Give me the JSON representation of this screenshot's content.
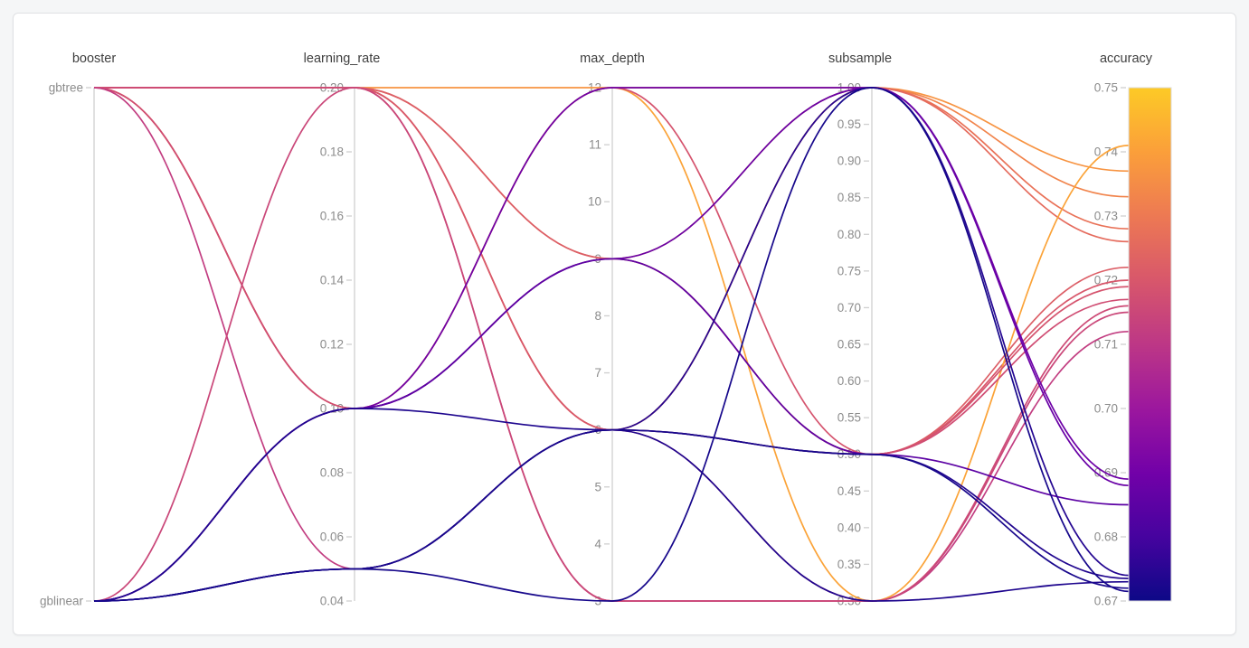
{
  "page": {
    "background_color": "#f5f6f7",
    "card_background": "#ffffff",
    "card_border_color": "#e0e1e4"
  },
  "style": {
    "axis_line_color": "#d8d8d8",
    "tick_mark_color": "#cfcfcf",
    "tick_label_color": "#8c8c8c",
    "axis_title_color": "#3f3f3f",
    "line_width": 1.7
  },
  "chart_data": {
    "type": "parallel-coordinates",
    "title": "",
    "legend": "none",
    "grid": "off",
    "axes": [
      {
        "name": "booster",
        "type": "categorical",
        "categories": [
          "gbtree",
          "gblinear"
        ],
        "tick_labels": [
          "gbtree",
          "gblinear"
        ]
      },
      {
        "name": "learning_rate",
        "type": "numeric",
        "range": [
          0.04,
          0.2
        ],
        "tick_labels": [
          "0.20",
          "0.18",
          "0.16",
          "0.14",
          "0.12",
          "0.10",
          "0.08",
          "0.06",
          "0.04"
        ]
      },
      {
        "name": "max_depth",
        "type": "numeric",
        "range": [
          3,
          12
        ],
        "tick_labels": [
          "12",
          "11",
          "10",
          "9",
          "8",
          "7",
          "6",
          "5",
          "4",
          "3"
        ]
      },
      {
        "name": "subsample",
        "type": "numeric",
        "range": [
          0.3,
          1.0
        ],
        "tick_labels": [
          "1.00",
          "0.95",
          "0.90",
          "0.85",
          "0.80",
          "0.75",
          "0.70",
          "0.65",
          "0.60",
          "0.55",
          "0.50",
          "0.45",
          "0.40",
          "0.35",
          "0.30"
        ]
      },
      {
        "name": "accuracy",
        "type": "numeric",
        "range": [
          0.67,
          0.75
        ],
        "tick_labels": [
          "0.75",
          "0.74",
          "0.73",
          "0.72",
          "0.71",
          "0.70",
          "0.69",
          "0.68",
          "0.67"
        ]
      }
    ],
    "colorbar": {
      "label": "accuracy",
      "min": 0.67,
      "max": 0.75,
      "position": "right",
      "colorscale": [
        "#0d0887",
        "#46039f",
        "#7201a8",
        "#9c179e",
        "#bd3786",
        "#d8576b",
        "#ed7953",
        "#fb9f3a",
        "#fdca26"
      ]
    },
    "trials": [
      {
        "booster": "gbtree",
        "learning_rate": 0.2,
        "max_depth": 12,
        "subsample": 1.0,
        "accuracy": 0.737
      },
      {
        "booster": "gbtree",
        "learning_rate": 0.2,
        "max_depth": 6,
        "subsample": 1.0,
        "accuracy": 0.733
      },
      {
        "booster": "gbtree",
        "learning_rate": 0.2,
        "max_depth": 9,
        "subsample": 1.0,
        "accuracy": 0.728
      },
      {
        "booster": "gbtree",
        "learning_rate": 0.2,
        "max_depth": 6,
        "subsample": 1.0,
        "accuracy": 0.726
      },
      {
        "booster": "gbtree",
        "learning_rate": 0.2,
        "max_depth": 9,
        "subsample": 0.5,
        "accuracy": 0.722
      },
      {
        "booster": "gbtree",
        "learning_rate": 0.2,
        "max_depth": 6,
        "subsample": 0.5,
        "accuracy": 0.72
      },
      {
        "booster": "gbtree",
        "learning_rate": 0.2,
        "max_depth": 3,
        "subsample": 0.3,
        "accuracy": 0.716
      },
      {
        "booster": "gbtree",
        "learning_rate": 0.1,
        "max_depth": 12,
        "subsample": 0.3,
        "accuracy": 0.741
      },
      {
        "booster": "gbtree",
        "learning_rate": 0.1,
        "max_depth": 12,
        "subsample": 0.5,
        "accuracy": 0.719
      },
      {
        "booster": "gbtree",
        "learning_rate": 0.1,
        "max_depth": 9,
        "subsample": 0.5,
        "accuracy": 0.717
      },
      {
        "booster": "gbtree",
        "learning_rate": 0.05,
        "max_depth": 6,
        "subsample": 0.3,
        "accuracy": 0.712
      },
      {
        "booster": "gblinear",
        "learning_rate": 0.2,
        "max_depth": 3,
        "subsample": 0.3,
        "accuracy": 0.715
      },
      {
        "booster": "gblinear",
        "learning_rate": 0.1,
        "max_depth": 12,
        "subsample": 1.0,
        "accuracy": 0.689
      },
      {
        "booster": "gblinear",
        "learning_rate": 0.1,
        "max_depth": 9,
        "subsample": 1.0,
        "accuracy": 0.688
      },
      {
        "booster": "gblinear",
        "learning_rate": 0.1,
        "max_depth": 9,
        "subsample": 0.5,
        "accuracy": 0.685
      },
      {
        "booster": "gblinear",
        "learning_rate": 0.05,
        "max_depth": 6,
        "subsample": 1.0,
        "accuracy": 0.674
      },
      {
        "booster": "gblinear",
        "learning_rate": 0.05,
        "max_depth": 6,
        "subsample": 0.5,
        "accuracy": 0.6735
      },
      {
        "booster": "gblinear",
        "learning_rate": 0.1,
        "max_depth": 6,
        "subsample": 0.3,
        "accuracy": 0.673
      },
      {
        "booster": "gblinear",
        "learning_rate": 0.05,
        "max_depth": 6,
        "subsample": 0.5,
        "accuracy": 0.672
      },
      {
        "booster": "gblinear",
        "learning_rate": 0.05,
        "max_depth": 3,
        "subsample": 1.0,
        "accuracy": 0.6715
      }
    ]
  }
}
